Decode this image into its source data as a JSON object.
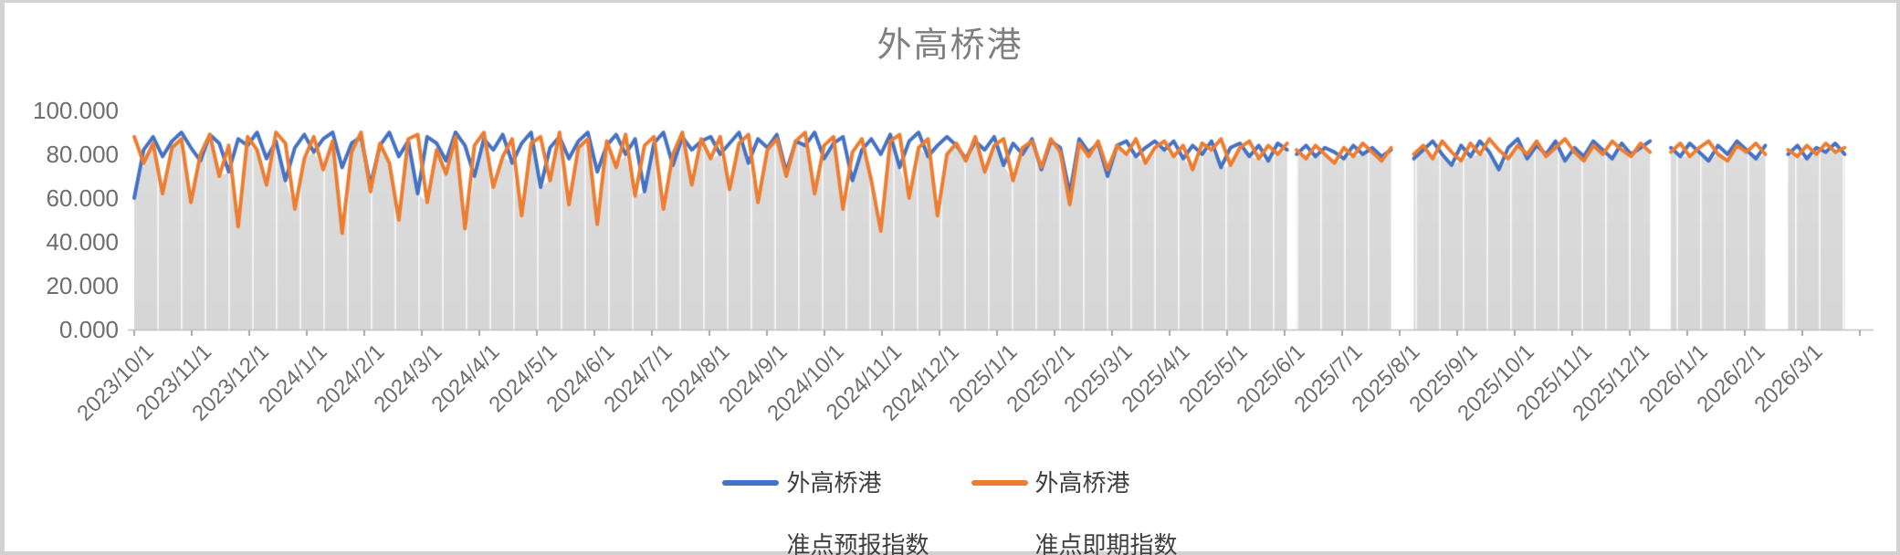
{
  "frame": {
    "border_color": "#d2d2d2",
    "canvas_color": "#ffffff"
  },
  "chart_data": {
    "type": "line",
    "title": "外高桥港",
    "title_color": "#7f7f7f",
    "ylabel": "",
    "xlabel": "",
    "ylim": [
      0,
      100
    ],
    "ytick_labels": [
      "100.000",
      "80.000",
      "60.000",
      "40.000",
      "20.000",
      "0.000"
    ],
    "ytick_values": [
      100,
      80,
      60,
      40,
      20,
      0
    ],
    "xtick_labels": [
      "2023/10/1",
      "2023/11/1",
      "2023/12/1",
      "2024/1/1",
      "2024/2/1",
      "2024/3/1",
      "2024/4/1",
      "2024/5/1",
      "2024/6/1",
      "2024/7/1",
      "2024/8/1",
      "2024/9/1",
      "2024/10/1",
      "2024/11/1",
      "2024/12/1",
      "2025/1/1",
      "2025/2/1",
      "2025/3/1",
      "2025/4/1",
      "2025/5/1",
      "2025/6/1",
      "2025/7/1",
      "2025/8/1",
      "2025/9/1",
      "2025/10/1",
      "2025/11/1",
      "2025/12/1",
      "2026/1/1",
      "2026/2/1",
      "2026/3/1"
    ],
    "x_start_date": "2023/10/1",
    "x_end_date": "2026/4/1",
    "grid": "vertical-white-hairlines-on-area",
    "legend_position": "bottom-center",
    "axis_color": "#bfbfbf",
    "tick_color": "#a6a6a6",
    "label_color": "#6e6e6e",
    "area_color_top": "#dedede",
    "area_color_bottom": "#d6d6d6",
    "area_hairline_color": "rgba(255,255,255,0.85)",
    "legend": [
      {
        "line1": "外高桥港",
        "line2": "准点预报指数",
        "color": "#4472C4"
      },
      {
        "line1": "外高桥港",
        "line2": "准点即期指数",
        "color": "#ED7D31"
      }
    ],
    "series_meta": [
      {
        "name": "外高桥港准点预报指数",
        "color": "#4472C4"
      },
      {
        "name": "外高桥港准点即期指数",
        "color": "#ED7D31"
      }
    ],
    "sample_step_days": 5,
    "note": "values are index estimates read from chart; daily series downsampled to 5-day steps; gaps = missing data periods",
    "segments": [
      {
        "start_day": 0,
        "blue": [
          60,
          82,
          88,
          79,
          86,
          90,
          83,
          77,
          89,
          85,
          72,
          87,
          84,
          90,
          78,
          86,
          68,
          83,
          89,
          81,
          87,
          90,
          74,
          85,
          88,
          66,
          84,
          90,
          79,
          86,
          62,
          88,
          85,
          77,
          90,
          84,
          70,
          87,
          82,
          89,
          76,
          85,
          90,
          65,
          83,
          88,
          78,
          86,
          90,
          72,
          84,
          89,
          80,
          87,
          63,
          85,
          90,
          75,
          88,
          82,
          86,
          88,
          80,
          85,
          90,
          76,
          87,
          83,
          89,
          72,
          86,
          84,
          90,
          78,
          85,
          88,
          68,
          82,
          87,
          80,
          89,
          74,
          86,
          90,
          79,
          84,
          88,
          84,
          78,
          86,
          82,
          88,
          75,
          85,
          80,
          87,
          73,
          86,
          83,
          62,
          87,
          81,
          85,
          70,
          84,
          86,
          79,
          83,
          86,
          82,
          86,
          78,
          84,
          80,
          86,
          74,
          83,
          85,
          79,
          84,
          77,
          85,
          82
        ],
        "orange": [
          88,
          76,
          85,
          62,
          83,
          87,
          58,
          80,
          89,
          70,
          84,
          47,
          88,
          82,
          66,
          90,
          85,
          55,
          78,
          88,
          73,
          86,
          44,
          81,
          90,
          63,
          85,
          76,
          50,
          87,
          89,
          58,
          82,
          71,
          88,
          46,
          84,
          90,
          65,
          79,
          87,
          52,
          85,
          88,
          68,
          90,
          57,
          83,
          87,
          48,
          86,
          74,
          89,
          61,
          84,
          88,
          55,
          80,
          90,
          66,
          87,
          78,
          88,
          64,
          85,
          89,
          58,
          82,
          87,
          70,
          86,
          90,
          62,
          84,
          88,
          55,
          81,
          87,
          68,
          45,
          86,
          89,
          60,
          83,
          87,
          52,
          80,
          85,
          77,
          88,
          72,
          84,
          87,
          68,
          83,
          86,
          74,
          87,
          81,
          57,
          85,
          79,
          86,
          73,
          84,
          80,
          87,
          76,
          83,
          86,
          79,
          84,
          73,
          85,
          82,
          87,
          75,
          83,
          86,
          78,
          84,
          80,
          85
        ]
      },
      {
        "start_day": 615,
        "blue": [
          80,
          84,
          79,
          83,
          81,
          78,
          84,
          80,
          83,
          79,
          82
        ],
        "orange": [
          82,
          78,
          84,
          80,
          76,
          83,
          79,
          85,
          81,
          77,
          83
        ]
      },
      {
        "start_day": 677,
        "blue": [
          78,
          82,
          86,
          80,
          75,
          84,
          79,
          86,
          81,
          73,
          83,
          87,
          78,
          84,
          80,
          86,
          77,
          83,
          79,
          86,
          82,
          78,
          85,
          80,
          83,
          86
        ],
        "orange": [
          80,
          84,
          78,
          86,
          81,
          77,
          85,
          80,
          87,
          82,
          78,
          84,
          80,
          86,
          79,
          83,
          87,
          81,
          77,
          84,
          80,
          86,
          82,
          79,
          85,
          81
        ]
      },
      {
        "start_day": 813,
        "blue": [
          83,
          79,
          85,
          81,
          77,
          84,
          80,
          86,
          82,
          78,
          84
        ],
        "orange": [
          81,
          85,
          79,
          83,
          86,
          80,
          77,
          84,
          81,
          85,
          80
        ]
      },
      {
        "start_day": 875,
        "blue": [
          80,
          84,
          78,
          83,
          81,
          85,
          80
        ],
        "orange": [
          82,
          79,
          84,
          80,
          85,
          81,
          83
        ]
      }
    ]
  }
}
